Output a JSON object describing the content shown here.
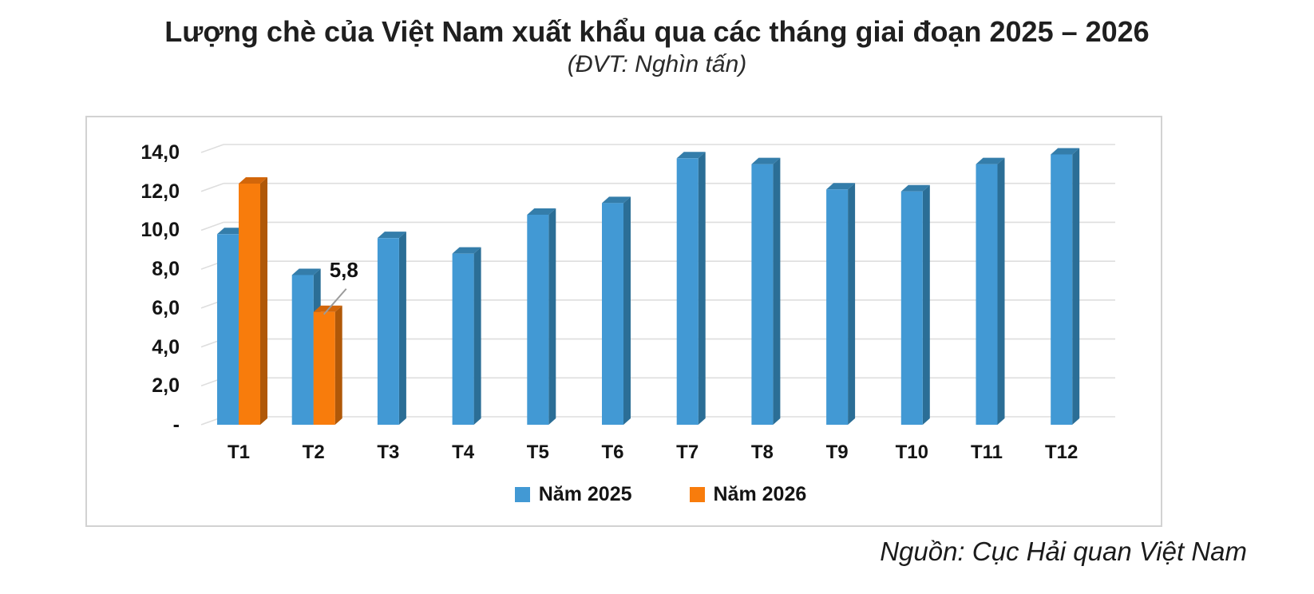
{
  "header": {
    "title": "Lượng chè của Việt Nam xuất khẩu qua các tháng giai đoạn 2025 – 2026",
    "subtitle": "(ĐVT: Nghìn tấn)"
  },
  "chart_data": {
    "type": "bar",
    "style": "3d-clustered-column",
    "unit": "Nghìn tấn",
    "categories": [
      "T1",
      "T2",
      "T3",
      "T4",
      "T5",
      "T6",
      "T7",
      "T8",
      "T9",
      "T10",
      "T11",
      "T12"
    ],
    "series": [
      {
        "name": "Năm 2025",
        "color": "#4299d4",
        "color_side": "#2b6e96",
        "color_top": "#347daa",
        "values": [
          9.8,
          7.7,
          9.6,
          8.8,
          10.8,
          11.4,
          13.7,
          13.4,
          12.1,
          12.0,
          13.4,
          13.9
        ]
      },
      {
        "name": "Năm 2026",
        "color": "#f87c0c",
        "color_side": "#b05808",
        "color_top": "#d2660a",
        "values": [
          12.4,
          5.8,
          null,
          null,
          null,
          null,
          null,
          null,
          null,
          null,
          null,
          null
        ]
      }
    ],
    "y_axis": {
      "min": 0,
      "max": 14,
      "step": 2,
      "tick_labels": [
        "14,0",
        "12,0",
        "10,0",
        "8,0",
        "6,0",
        "4,0",
        "2,0",
        "-"
      ]
    },
    "annotation": {
      "text": "5,8",
      "series": "Năm 2026",
      "category": "T2"
    },
    "legend_position": "bottom",
    "grid": true,
    "gridline_color": "#dedede"
  },
  "source": "Nguồn: Cục Hải quan Việt Nam"
}
